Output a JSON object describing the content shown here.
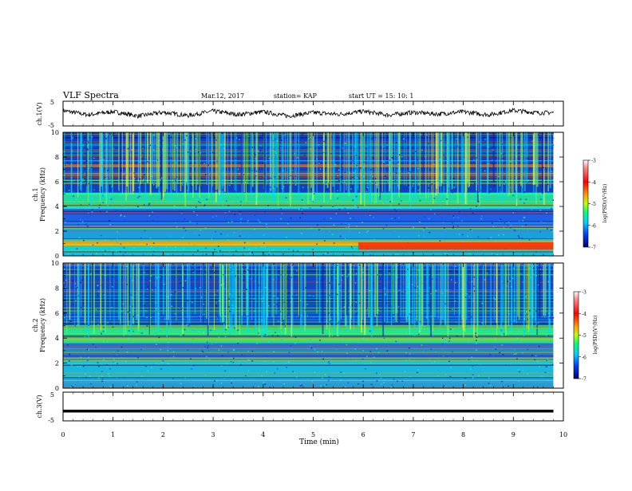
{
  "header": {
    "title": "VLF Spectra",
    "date": "Mar.12, 2017",
    "station": "station= KAP",
    "start_ut": "start  UT  =   15: 10: 1"
  },
  "chart_data": [
    {
      "type": "line",
      "ylabel": "ch.1(V)",
      "ylim": [
        -5,
        5
      ],
      "yticks": [
        "5",
        "-5"
      ],
      "xlim": [
        0,
        10
      ],
      "description": "noisy time series around about 0.5 V",
      "x": [
        0,
        0.5,
        1,
        1.5,
        2,
        2.5,
        3,
        3.5,
        4,
        4.5,
        5,
        5.5,
        6,
        6.5,
        7,
        7.5,
        8,
        8.5,
        9,
        9.5,
        9.8
      ],
      "values": [
        1.2,
        -0.5,
        0.8,
        -1.0,
        0.5,
        -0.8,
        1.0,
        -0.4,
        0.7,
        -1.0,
        0.4,
        -0.3,
        0.9,
        -0.6,
        0.5,
        -0.2,
        0.7,
        -0.5,
        1.3,
        0.3,
        0.4
      ],
      "line_color": "#000000"
    },
    {
      "type": "heatmap",
      "ylabel": "Frequency (kHz)",
      "channel_label": "ch.1",
      "ylim": [
        0,
        10
      ],
      "yticks": [
        "0",
        "2",
        "4",
        "6",
        "8",
        "10"
      ],
      "xlim": [
        0,
        10
      ],
      "colorbar": {
        "label": "log(PSD)(V²/Hz)",
        "min": -7,
        "max": -3,
        "ticks": [
          "-3",
          "-4",
          "-5",
          "-6",
          "-7"
        ]
      },
      "bands": [
        {
          "from_khz": 0.0,
          "to_khz": 0.8,
          "color": "#00c8e0"
        },
        {
          "from_khz": 0.8,
          "to_khz": 1.2,
          "color": "#ff9900"
        },
        {
          "from_khz": 1.2,
          "to_khz": 2.4,
          "color": "#1aa0e0"
        },
        {
          "from_khz": 2.4,
          "to_khz": 3.8,
          "color": "#2060e0"
        },
        {
          "from_khz": 3.8,
          "to_khz": 5.1,
          "color": "#20d8a0"
        },
        {
          "from_khz": 5.1,
          "to_khz": 10.0,
          "color": "#1040c0"
        }
      ],
      "enhancement": {
        "from_min": 5.9,
        "to_min": 9.8,
        "from_khz": 0.5,
        "to_khz": 1.1,
        "color": "#ff2a00"
      }
    },
    {
      "type": "heatmap",
      "ylabel": "Frequency (kHz)",
      "channel_label": "ch.2",
      "ylim": [
        0,
        10
      ],
      "yticks": [
        "0",
        "2",
        "4",
        "6",
        "8",
        "10"
      ],
      "xlim": [
        0,
        10
      ],
      "colorbar": {
        "label": "log(PSD)(V²/Hz)",
        "min": -7,
        "max": -3,
        "ticks": [
          "-3",
          "-4",
          "-5",
          "-6",
          "-7"
        ]
      },
      "bands": [
        {
          "from_khz": 0.0,
          "to_khz": 1.0,
          "color": "#1aa0e0"
        },
        {
          "from_khz": 1.0,
          "to_khz": 2.5,
          "color": "#18b8d8"
        },
        {
          "from_khz": 2.5,
          "to_khz": 3.6,
          "color": "#2070e0"
        },
        {
          "from_khz": 3.6,
          "to_khz": 5.0,
          "color": "#28e080"
        },
        {
          "from_khz": 5.0,
          "to_khz": 10.0,
          "color": "#1048c8"
        }
      ]
    },
    {
      "type": "line",
      "ylabel": "ch.3(V)",
      "ylim": [
        -5,
        5
      ],
      "yticks": [
        "5",
        "-5"
      ],
      "xlim": [
        0,
        10
      ],
      "x": [
        0,
        9.8
      ],
      "values": [
        -1.6,
        -1.6
      ],
      "line_color": "#000000"
    }
  ],
  "xaxis": {
    "label": "Time (min)",
    "ticks": [
      "0",
      "1",
      "2",
      "3",
      "4",
      "5",
      "6",
      "7",
      "8",
      "9",
      "10"
    ]
  },
  "colorbar_scale": [
    "#800000",
    "#ff0000",
    "#ff8000",
    "#ffff00",
    "#80ff80",
    "#00ffff",
    "#0080ff",
    "#0000ff",
    "#000080"
  ]
}
